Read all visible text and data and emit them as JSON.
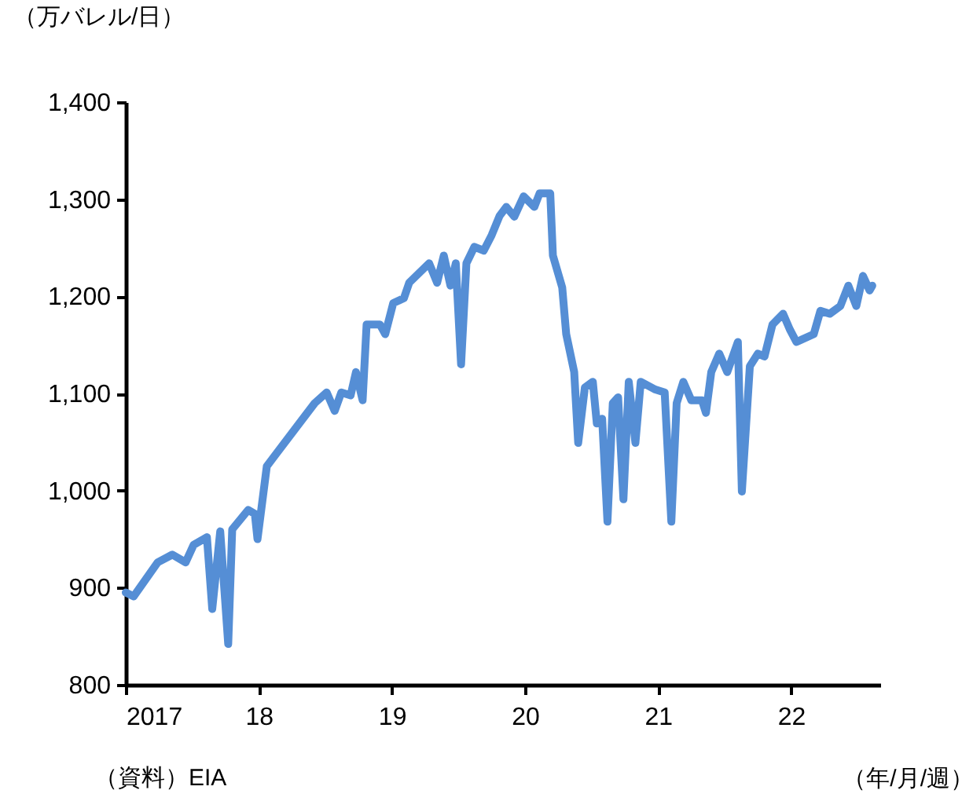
{
  "chart_data": {
    "type": "line",
    "ylabel": "（万バレル/日）",
    "xlabel": "（年/月/週）",
    "annotations": [
      "（資料）EIA"
    ],
    "color": "#558ed5",
    "x": [
      2017.0,
      2017.06,
      2017.24,
      2017.35,
      2017.45,
      2017.51,
      2017.61,
      2017.65,
      2017.71,
      2017.77,
      2017.8,
      2017.92,
      2017.97,
      2017.99,
      2018.06,
      2018.12,
      2018.32,
      2018.42,
      2018.51,
      2018.57,
      2018.62,
      2018.69,
      2018.73,
      2018.78,
      2018.81,
      2018.91,
      2018.95,
      2019.01,
      2019.09,
      2019.13,
      2019.28,
      2019.34,
      2019.39,
      2019.44,
      2019.48,
      2019.52,
      2019.56,
      2019.62,
      2019.69,
      2019.75,
      2019.81,
      2019.86,
      2019.92,
      2019.99,
      2020.07,
      2020.11,
      2020.19,
      2020.21,
      2020.28,
      2020.31,
      2020.37,
      2020.4,
      2020.45,
      2020.51,
      2020.54,
      2020.58,
      2020.62,
      2020.66,
      2020.7,
      2020.74,
      2020.78,
      2020.83,
      2020.87,
      2020.98,
      2021.05,
      2021.1,
      2021.14,
      2021.19,
      2021.25,
      2021.33,
      2021.36,
      2021.4,
      2021.46,
      2021.52,
      2021.6,
      2021.63,
      2021.69,
      2021.75,
      2021.8,
      2021.86,
      2021.94,
      2021.99,
      2022.04,
      2022.17,
      2022.22,
      2022.29,
      2022.37,
      2022.43,
      2022.49,
      2022.54,
      2022.59,
      2022.61
    ],
    "values": [
      895,
      891,
      926,
      934,
      926,
      944,
      952,
      878,
      958,
      842,
      960,
      980,
      976,
      950,
      1025,
      1036,
      1072,
      1090,
      1101,
      1082,
      1101,
      1098,
      1122,
      1093,
      1171,
      1171,
      1161,
      1193,
      1198,
      1214,
      1234,
      1214,
      1242,
      1211,
      1234,
      1130,
      1234,
      1251,
      1247,
      1263,
      1283,
      1292,
      1282,
      1303,
      1292,
      1306,
      1306,
      1242,
      1209,
      1161,
      1122,
      1049,
      1106,
      1112,
      1069,
      1074,
      968,
      1090,
      1096,
      991,
      1112,
      1049,
      1112,
      1104,
      1101,
      968,
      1090,
      1112,
      1093,
      1093,
      1080,
      1122,
      1141,
      1122,
      1153,
      999,
      1128,
      1141,
      1138,
      1171,
      1182,
      1166,
      1153,
      1161,
      1185,
      1182,
      1190,
      1211,
      1190,
      1221,
      1206,
      1211
    ],
    "xlim": [
      2017,
      2022.67
    ],
    "xticks": [
      2017,
      {
        "value": 2018,
        "label": "18"
      },
      {
        "value": 2019,
        "label": "19"
      },
      {
        "value": 2020,
        "label": "20"
      },
      {
        "value": 2021,
        "label": "21"
      },
      {
        "value": 2022,
        "label": "22"
      }
    ],
    "ylim": [
      800,
      1400
    ],
    "yticks": [
      800,
      900,
      {
        "value": 1000,
        "label": "1,000"
      },
      {
        "value": 1100,
        "label": "1,100"
      },
      {
        "value": 1200,
        "label": "1,200"
      },
      {
        "value": 1300,
        "label": "1,300"
      },
      {
        "value": 1400,
        "label": "1,400"
      }
    ]
  }
}
